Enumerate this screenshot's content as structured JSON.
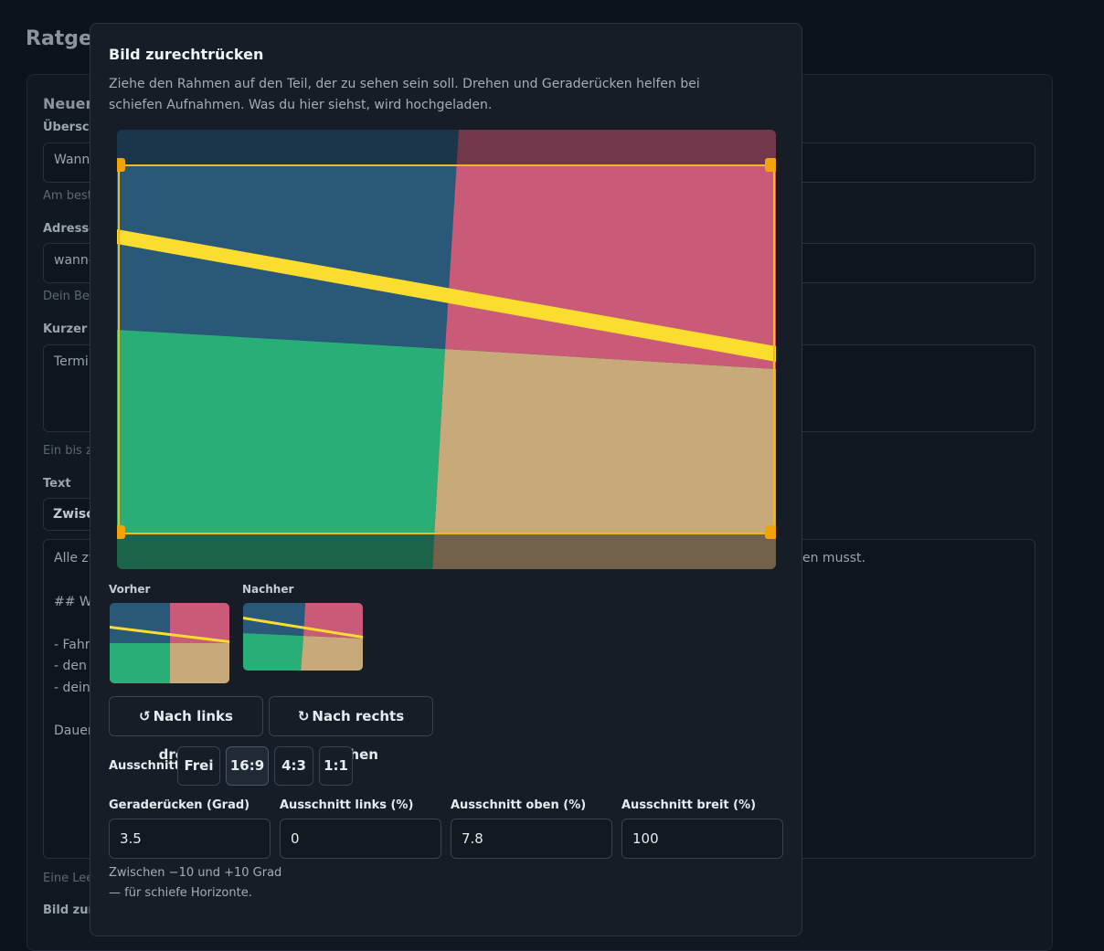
{
  "background": {
    "page_title": "Ratgel",
    "section_heading": "Neuer",
    "labels": {
      "title": "Übersch",
      "address": "Adresse",
      "summary": "Kurzer A",
      "text": "Text",
      "image": "Bild zum"
    },
    "hints": {
      "title": "Am best",
      "address": "Dein Bei",
      "summary": "Ein bis z",
      "text": "Eine Lee"
    },
    "values": {
      "title": "Wann",
      "address": "wann-",
      "summary": "Termi"
    },
    "text_format": "Zwisc",
    "body_lines_left": [
      "Alle zw",
      "## Wa",
      "- Fahr",
      "- den",
      "- dein",
      "Dauer"
    ],
    "body_line_right": "en musst."
  },
  "modal": {
    "title": "Bild zurechtrücken",
    "description": "Ziehe den Rahmen auf den Teil, der zu sehen sein soll. Drehen und Geraderücken helfen bei schiefen Aufnahmen. Was du hier siehst, wird hochgeladen.",
    "preview_labels": {
      "before": "Vorher",
      "after": "Nachher"
    },
    "buttons": {
      "rotate_left": {
        "icon": "↺",
        "label": "Nach links drehen"
      },
      "rotate_right": {
        "icon": "↻",
        "label": "Nach rechts drehen"
      }
    },
    "ratio": {
      "label": "Ausschnitt:",
      "options": [
        "Frei",
        "16:9",
        "4:3",
        "1:1"
      ],
      "selected": "16:9"
    },
    "fields": {
      "straighten": {
        "label": "Geraderücken (Grad)",
        "value": "3.5"
      },
      "crop_left": {
        "label": "Ausschnitt links (%)",
        "value": "0"
      },
      "crop_top": {
        "label": "Ausschnitt oben (%)",
        "value": "7.8"
      },
      "crop_width": {
        "label": "Ausschnitt breit (%)",
        "value": "100"
      }
    },
    "straighten_hint": "Zwischen −10 und +10 Grad — für schiefe Horizonte."
  },
  "colors": {
    "image_blue": "#2a5879",
    "image_pink": "#c95b79",
    "image_green": "#2aae78",
    "image_tan": "#c8a97a",
    "image_yellow": "#fadd2e",
    "crop_frame": "#f2b81e",
    "crop_handle": "#f0a30a"
  }
}
